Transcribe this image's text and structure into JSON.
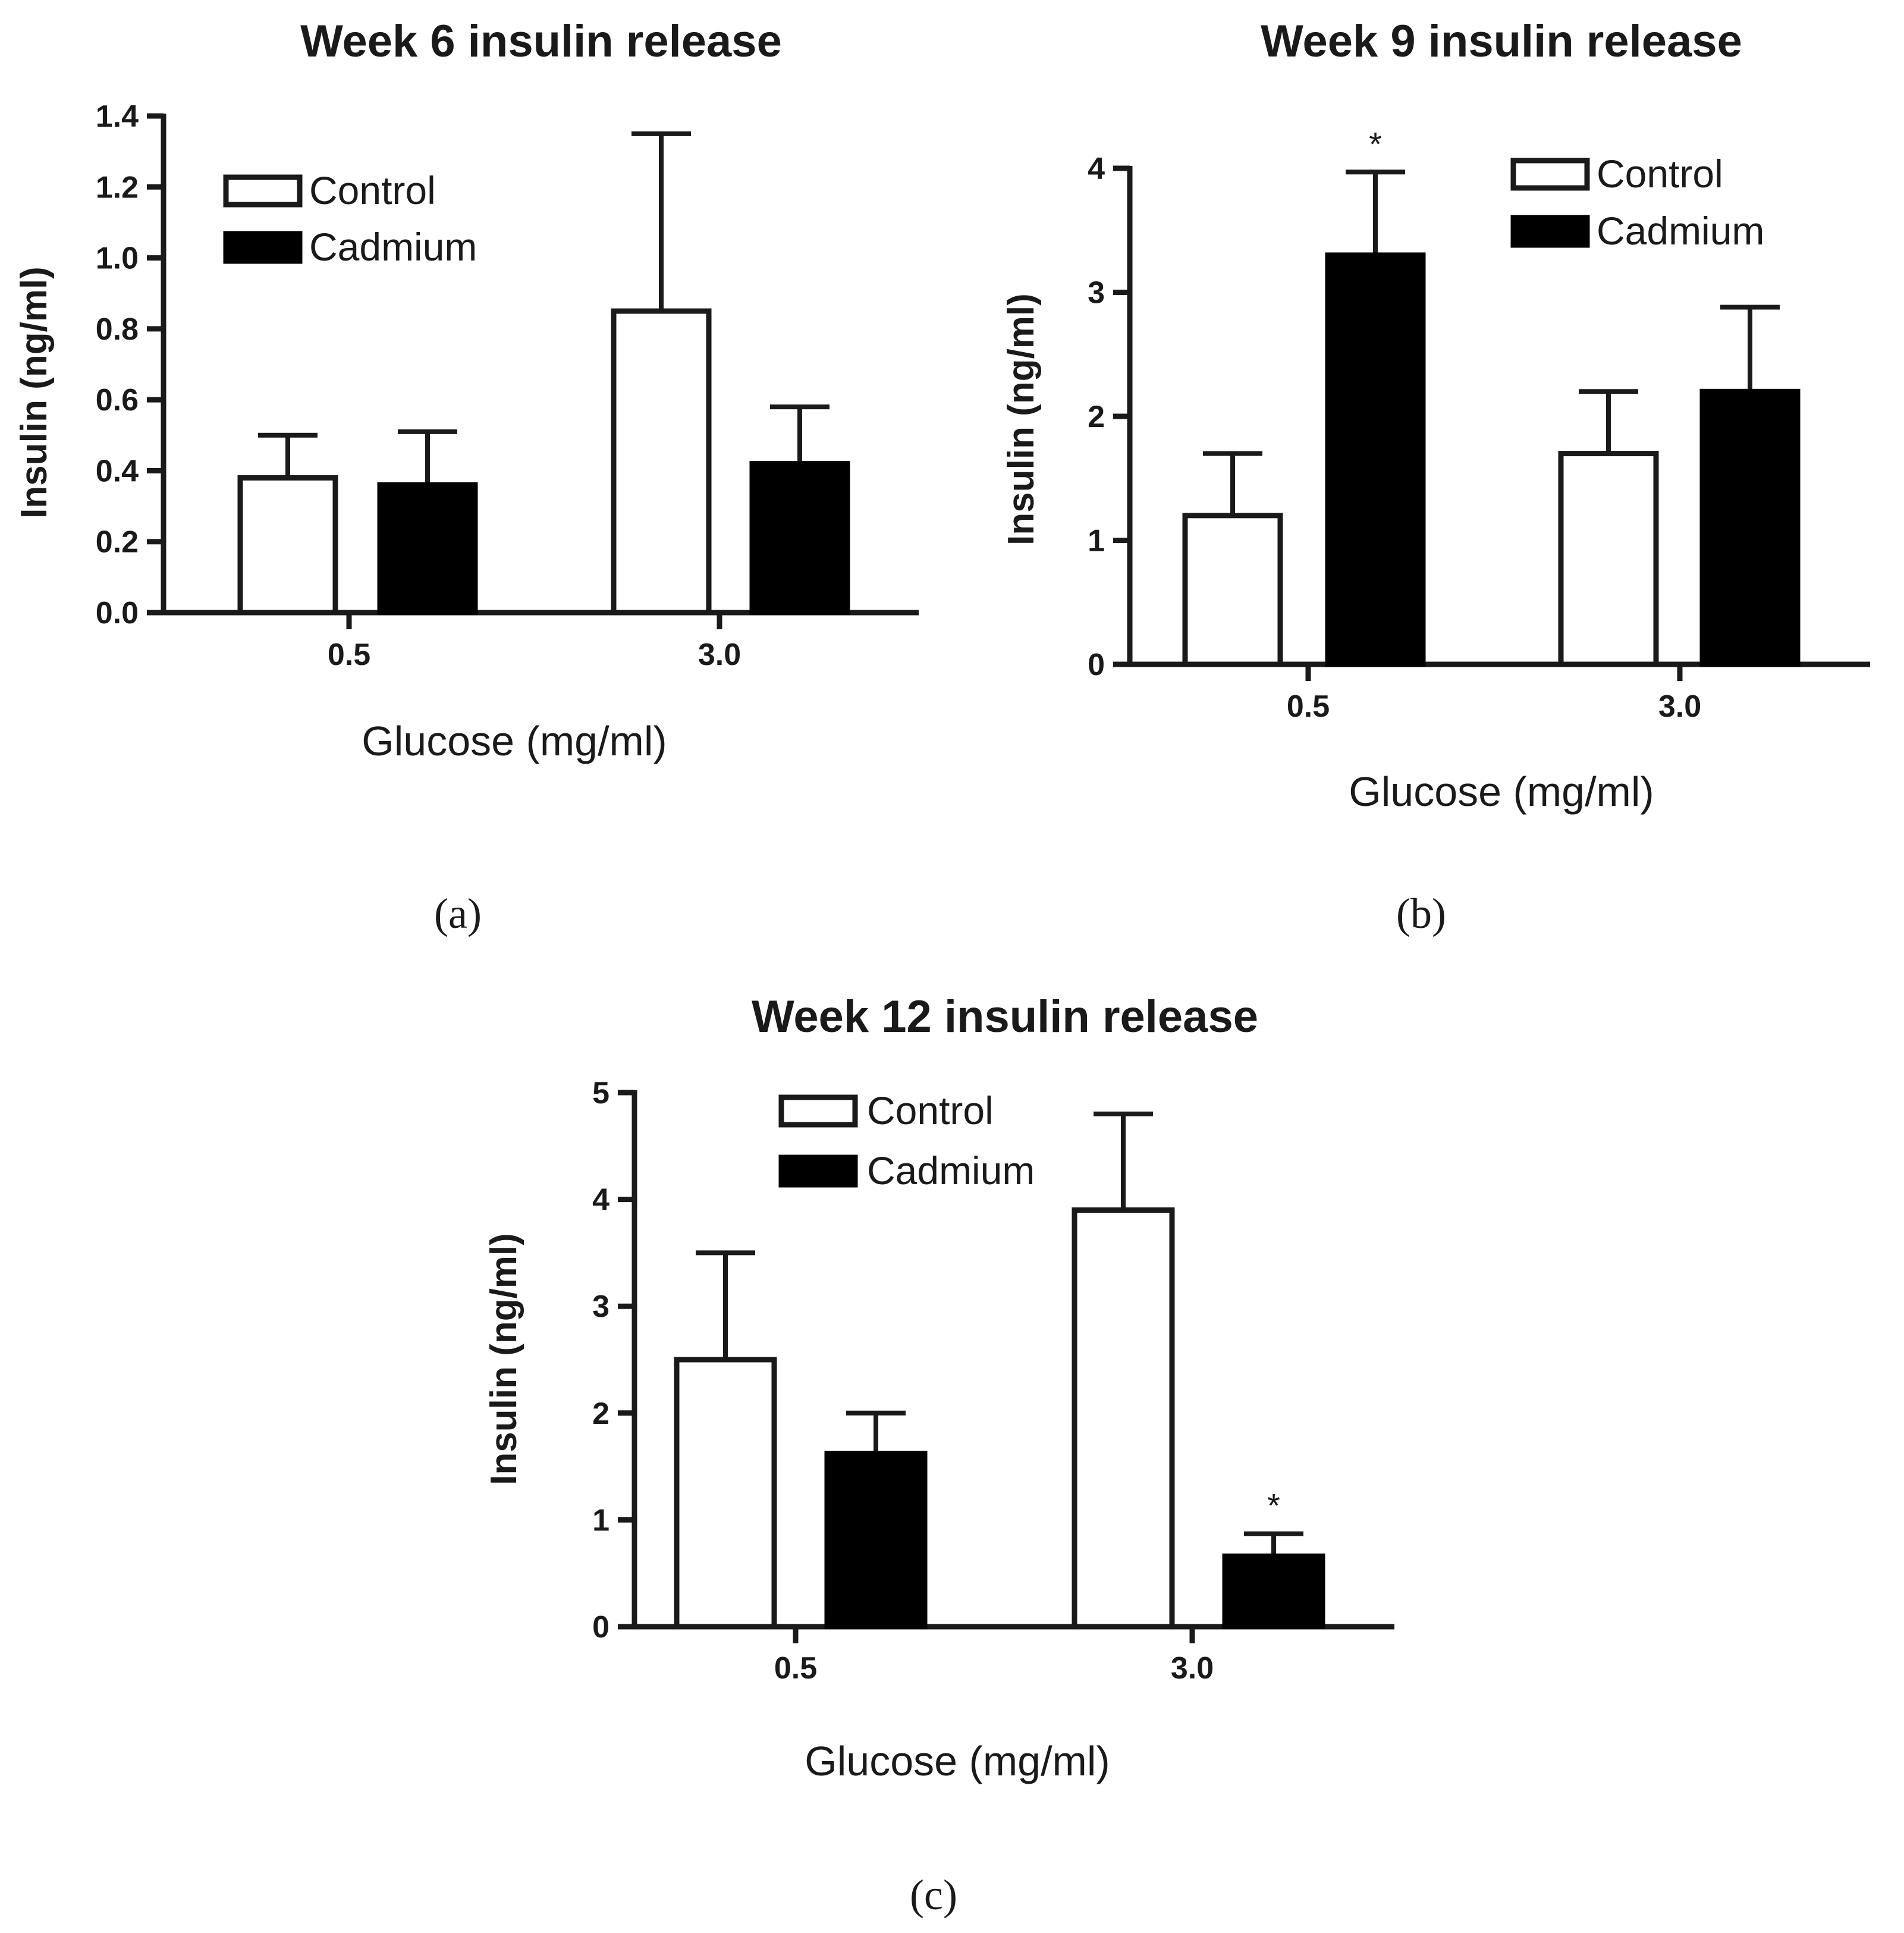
{
  "colors": {
    "ink": "#1a1a1a",
    "control_fill": "#ffffff",
    "cadmium_fill": "#000000"
  },
  "chart_data": [
    {
      "type": "bar",
      "title": "Week 6 insulin release",
      "panel_label": "(a)",
      "xlabel": "Glucose (mg/ml)",
      "ylabel": "Insulin (ng/ml)",
      "categories": [
        "0.5",
        "3.0"
      ],
      "ylim": [
        0,
        1.4
      ],
      "yticks": [
        0,
        0.2,
        0.4,
        0.6,
        0.8,
        1.0,
        1.2,
        1.4
      ],
      "ytick_labels": [
        "0.0",
        "0.2",
        "0.4",
        "0.6",
        "0.8",
        "1.0",
        "1.2",
        "1.4"
      ],
      "legend_position": "top-left",
      "series": [
        {
          "name": "Control",
          "values": [
            0.38,
            0.85
          ],
          "errors": [
            0.12,
            0.5
          ],
          "significant": [
            false,
            false
          ]
        },
        {
          "name": "Cadmium",
          "values": [
            0.36,
            0.42
          ],
          "errors": [
            0.15,
            0.16
          ],
          "significant": [
            false,
            false
          ]
        }
      ],
      "significance_marker": "*"
    },
    {
      "type": "bar",
      "title": "Week 9 insulin release",
      "panel_label": "(b)",
      "xlabel": "Glucose (mg/ml)",
      "ylabel": "Insulin (ng/ml)",
      "categories": [
        "0.5",
        "3.0"
      ],
      "ylim": [
        0,
        4
      ],
      "yticks": [
        0,
        1,
        2,
        3,
        4
      ],
      "ytick_labels": [
        "0",
        "1",
        "2",
        "3",
        "4"
      ],
      "legend_position": "top-right",
      "series": [
        {
          "name": "Control",
          "values": [
            1.2,
            1.7
          ],
          "errors": [
            0.5,
            0.5
          ],
          "significant": [
            false,
            false
          ]
        },
        {
          "name": "Cadmium",
          "values": [
            3.3,
            2.2
          ],
          "errors": [
            0.67,
            0.68
          ],
          "significant": [
            true,
            false
          ]
        }
      ],
      "significance_marker": "*"
    },
    {
      "type": "bar",
      "title": "Week 12 insulin release",
      "panel_label": "(c)",
      "xlabel": "Glucose (mg/ml)",
      "ylabel": "Insulin (ng/ml)",
      "categories": [
        "0.5",
        "3.0"
      ],
      "ylim": [
        0,
        5
      ],
      "yticks": [
        0,
        1,
        2,
        3,
        4,
        5
      ],
      "ytick_labels": [
        "0",
        "1",
        "2",
        "3",
        "4",
        "5"
      ],
      "legend_position": "top-center",
      "series": [
        {
          "name": "Control",
          "values": [
            2.5,
            3.9
          ],
          "errors": [
            1.0,
            0.9
          ],
          "significant": [
            false,
            false
          ]
        },
        {
          "name": "Cadmium",
          "values": [
            1.62,
            0.66
          ],
          "errors": [
            0.38,
            0.21
          ],
          "significant": [
            false,
            true
          ]
        }
      ],
      "significance_marker": "*"
    }
  ]
}
